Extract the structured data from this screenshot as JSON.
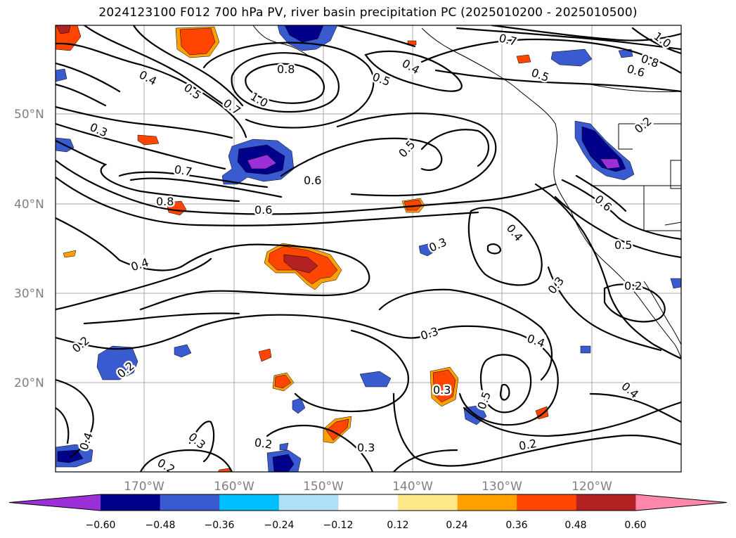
{
  "title": "2024123100 F012 700 hPa PV, river basin precipitation PC (2025010200 - 2025010500)",
  "map": {
    "lat_labels": [
      "50°N",
      "40°N",
      "30°N",
      "20°N"
    ],
    "lon_labels": [
      "170°W",
      "160°W",
      "150°W",
      "140°W",
      "130°W",
      "120°W"
    ],
    "contour_labels": [
      "0.4",
      "0.5",
      "0.7",
      "0.8",
      "1.0",
      "0.5",
      "0.4",
      "0.7",
      "0.8",
      "0.6",
      "0.5",
      "0.3",
      "0.7",
      "0.5",
      "0.6",
      "0.8",
      "0.6",
      "0.4",
      "0.3",
      "0.4",
      "0.6",
      "0.5",
      "0.3",
      "0.2",
      "0.2",
      "0.2",
      "0.3",
      "0.4",
      "0.3",
      "0.5",
      "0.2",
      "0.3",
      "0.2",
      "0.4",
      "0.4",
      "0.2",
      "0.3",
      "0.2",
      "1.0"
    ]
  },
  "colorbar": {
    "ticks": [
      "−0.60",
      "−0.48",
      "−0.36",
      "−0.24",
      "−0.12",
      "0.12",
      "0.24",
      "0.36",
      "0.48",
      "0.60"
    ],
    "colors": [
      "#9b30d9",
      "#00008b",
      "#3a5bd0",
      "#00bfff",
      "#b0e0f8",
      "#ffffff",
      "#ffe88a",
      "#ffa000",
      "#ff4500",
      "#b22222",
      "#ff88aa"
    ]
  }
}
